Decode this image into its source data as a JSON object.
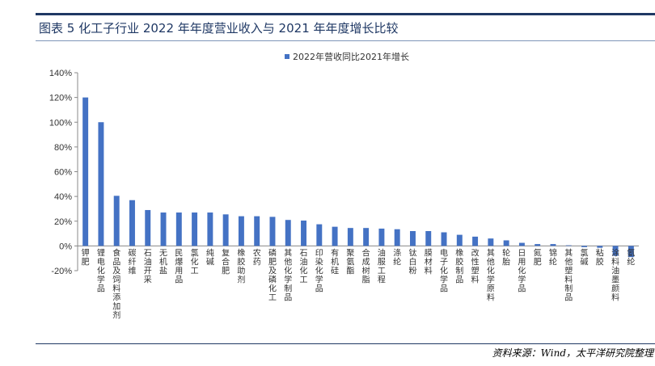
{
  "header": {
    "title": "图表 5 化工子行业 2022 年年度营业收入与 2021 年年度增长比较"
  },
  "footer": {
    "source": "资料来源：Wind，太平洋研究院整理"
  },
  "chart_data": {
    "type": "bar",
    "legend": {
      "label": "2022年营收同比2021年增长",
      "position": "top-center"
    },
    "ylim": [
      -20,
      140
    ],
    "yticks": [
      -20,
      0,
      20,
      40,
      60,
      80,
      100,
      120,
      140
    ],
    "ytick_labels": [
      "-20%",
      "0%",
      "20%",
      "40%",
      "60%",
      "80%",
      "100%",
      "120%",
      "140%"
    ],
    "bar_color": "#4472c4",
    "grid": false,
    "categories": [
      "钾肥",
      "锂电化学品",
      "食品及饲料添加剂",
      "碳纤维",
      "石油开采",
      "无机盐",
      "民爆用品",
      "氯化工",
      "纯碱",
      "复合肥",
      "橡胶助剂",
      "农药",
      "磷肥及磷化工",
      "其他化学制品",
      "石油化工",
      "印染化学品",
      "有机硅",
      "聚氨酯",
      "合成树脂",
      "油服工程",
      "涤纶",
      "钛白粉",
      "膜材料",
      "电子化学品",
      "橡胶制品",
      "改性塑料",
      "其他化学原料",
      "轮胎",
      "日用化学品",
      "氮肥",
      "锦纶",
      "其他塑料制品",
      "氯碱",
      "粘胶",
      "涂料油墨颜料",
      "氨纶"
    ],
    "values": [
      120,
      100,
      40.5,
      37,
      29,
      27,
      27,
      27,
      27,
      25.5,
      24,
      24,
      23.5,
      21,
      20.5,
      17.5,
      15.5,
      14.5,
      14.5,
      14,
      13.5,
      12,
      12,
      11,
      9,
      7.5,
      6,
      4.5,
      2.5,
      1.5,
      1.5,
      0.5,
      -1,
      -1.5,
      -8,
      -9
    ]
  }
}
